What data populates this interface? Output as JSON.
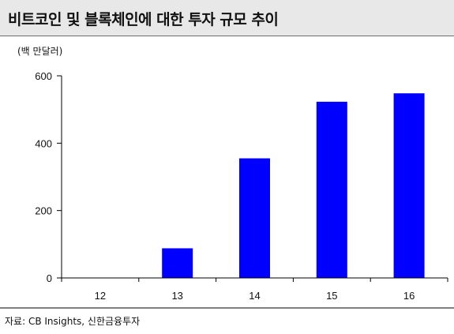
{
  "header": {
    "title": "비트코인 및 블록체인에 대한 투자 규모 추이"
  },
  "footer": {
    "source": "자료: CB Insights, 신한금융투자"
  },
  "chart_data": {
    "type": "bar",
    "unit_label": "(백 만달러)",
    "categories": [
      "12",
      "13",
      "14",
      "15",
      "16"
    ],
    "values": [
      0,
      88,
      355,
      523,
      548
    ],
    "ylim": [
      0,
      600
    ],
    "yticks": [
      "0",
      "200",
      "400",
      "600"
    ],
    "ytick_values": [
      0,
      200,
      400,
      600
    ],
    "bar_color": "#0000ff",
    "grid": false,
    "legend": "none"
  }
}
